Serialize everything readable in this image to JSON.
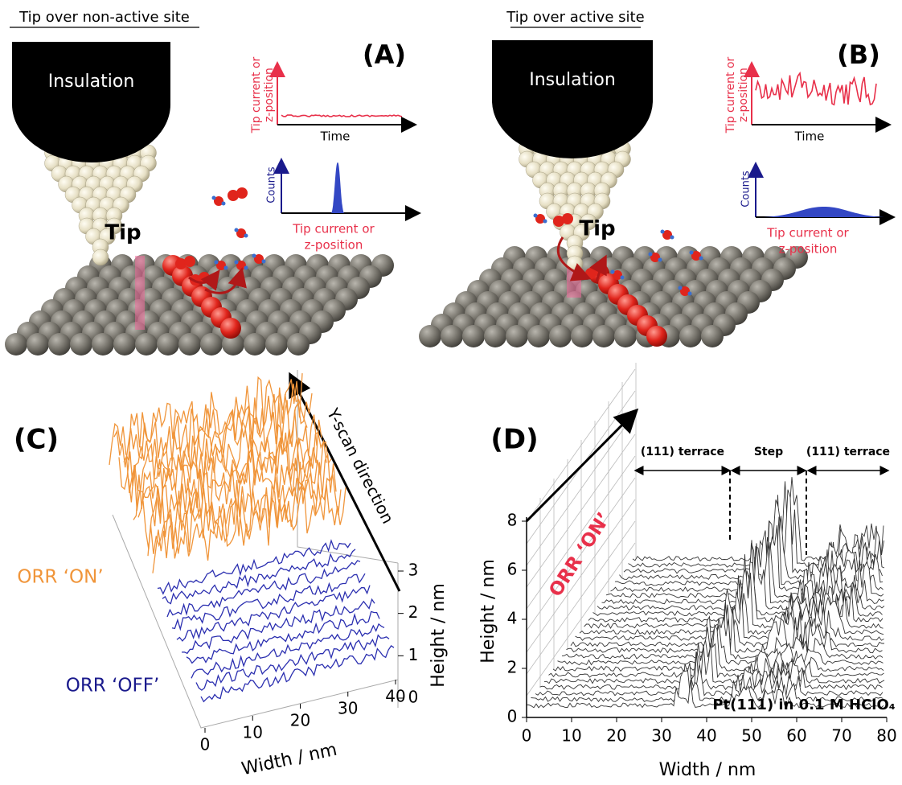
{
  "panel_a": {
    "label": "(A)",
    "heading": "Tip over non-active site",
    "insulation": "Insulation",
    "tip": "Tip",
    "signal_plot": {
      "y_label": [
        "Tip current or",
        "z-position"
      ],
      "x_label": "Time"
    },
    "histogram": {
      "y_label": "Counts",
      "x_label": [
        "Tip current or",
        "z-position"
      ]
    }
  },
  "panel_b": {
    "label": "(B)",
    "heading": "Tip over active site",
    "insulation": "Insulation",
    "tip": "Tip",
    "signal_plot": {
      "y_label": [
        "Tip current or",
        "z-position"
      ],
      "x_label": "Time"
    },
    "histogram": {
      "y_label": "Counts",
      "x_label": [
        "Tip current or",
        "z-position"
      ]
    }
  },
  "panel_c": {
    "label": "(C)",
    "arrow_label": "Y-scan direction",
    "on_label": "ORR ‘ON’",
    "off_label": "ORR ‘OFF’",
    "x_label": "Width / nm",
    "y_label": "Height / nm",
    "xlim": [
      0,
      40
    ],
    "xticks": [
      0,
      10,
      20,
      30,
      40
    ],
    "ylim": [
      0,
      3
    ],
    "yticks": [
      0,
      1,
      2,
      3
    ]
  },
  "panel_d": {
    "label": "(D)",
    "regions": [
      "(111) terrace",
      "Step",
      "(111) terrace"
    ],
    "on_label": "ORR ‘ON’",
    "sample": "Pt(111) in 0.1 M HClO₄",
    "x_label": "Width / nm",
    "y_label": "Height / nm",
    "xlim": [
      0,
      80
    ],
    "xticks": [
      0,
      10,
      20,
      30,
      40,
      50,
      60,
      70,
      80
    ],
    "ylim": [
      0,
      8
    ],
    "yticks": [
      0,
      2,
      4,
      6,
      8
    ]
  }
}
